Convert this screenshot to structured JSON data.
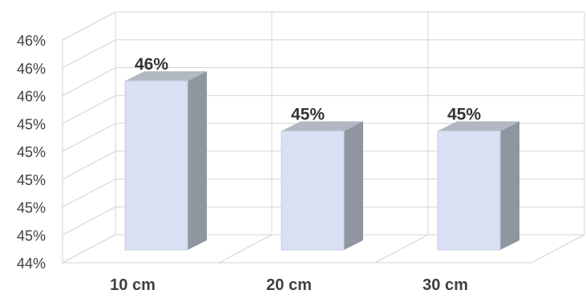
{
  "chart_data": {
    "type": "bar",
    "title": "",
    "xlabel": "",
    "ylabel": "",
    "categories": [
      "10 cm",
      "20 cm",
      "30 cm"
    ],
    "values": [
      0.4596,
      0.4542,
      0.4542
    ],
    "data_labels": [
      "46%",
      "45%",
      "45%"
    ],
    "y_tick_labels": [
      "44%",
      "45%",
      "45%",
      "45%",
      "45%",
      "45%",
      "46%",
      "46%",
      "46%"
    ],
    "ylim": [
      0.44,
      0.464
    ],
    "grid": true,
    "style": "3d",
    "colors": {
      "bar_front": "#d9e0f4",
      "bar_side": "#8f96a0",
      "bar_top": "#b2b8c2",
      "grid": "#d4d4d4"
    }
  }
}
